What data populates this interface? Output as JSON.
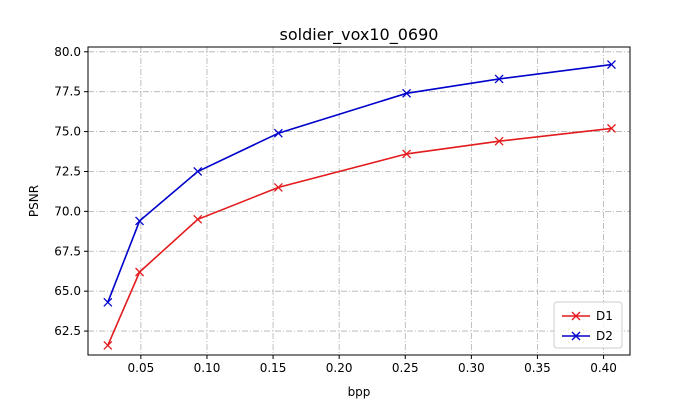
{
  "chart_data": {
    "type": "line",
    "title": "soldier_vox10_0690",
    "xlabel": "bpp",
    "ylabel": "PSNR",
    "xlim": [
      0.01,
      0.42
    ],
    "ylim": [
      61.0,
      80.3
    ],
    "xticks": [
      0.05,
      0.1,
      0.15,
      0.2,
      0.25,
      0.3,
      0.35,
      0.4
    ],
    "xtick_labels": [
      "0.05",
      "0.10",
      "0.15",
      "0.20",
      "0.25",
      "0.30",
      "0.35",
      "0.40"
    ],
    "yticks": [
      62.5,
      65.0,
      67.5,
      70.0,
      72.5,
      75.0,
      77.5,
      80.0
    ],
    "ytick_labels": [
      "62.5",
      "65.0",
      "67.5",
      "70.0",
      "72.5",
      "75.0",
      "77.5",
      "80.0"
    ],
    "grid": true,
    "legend_position": "bottom-right",
    "marker": "x",
    "series": [
      {
        "name": "D1",
        "color": "#e41a1c",
        "x": [
          0.025,
          0.049,
          0.093,
          0.154,
          0.251,
          0.321,
          0.406
        ],
        "y": [
          61.6,
          66.2,
          69.5,
          71.5,
          73.6,
          74.4,
          75.2
        ]
      },
      {
        "name": "D2",
        "color": "#0000cc",
        "x": [
          0.025,
          0.049,
          0.093,
          0.154,
          0.251,
          0.321,
          0.406
        ],
        "y": [
          64.3,
          69.4,
          72.5,
          74.9,
          77.4,
          78.3,
          79.2
        ]
      }
    ]
  }
}
